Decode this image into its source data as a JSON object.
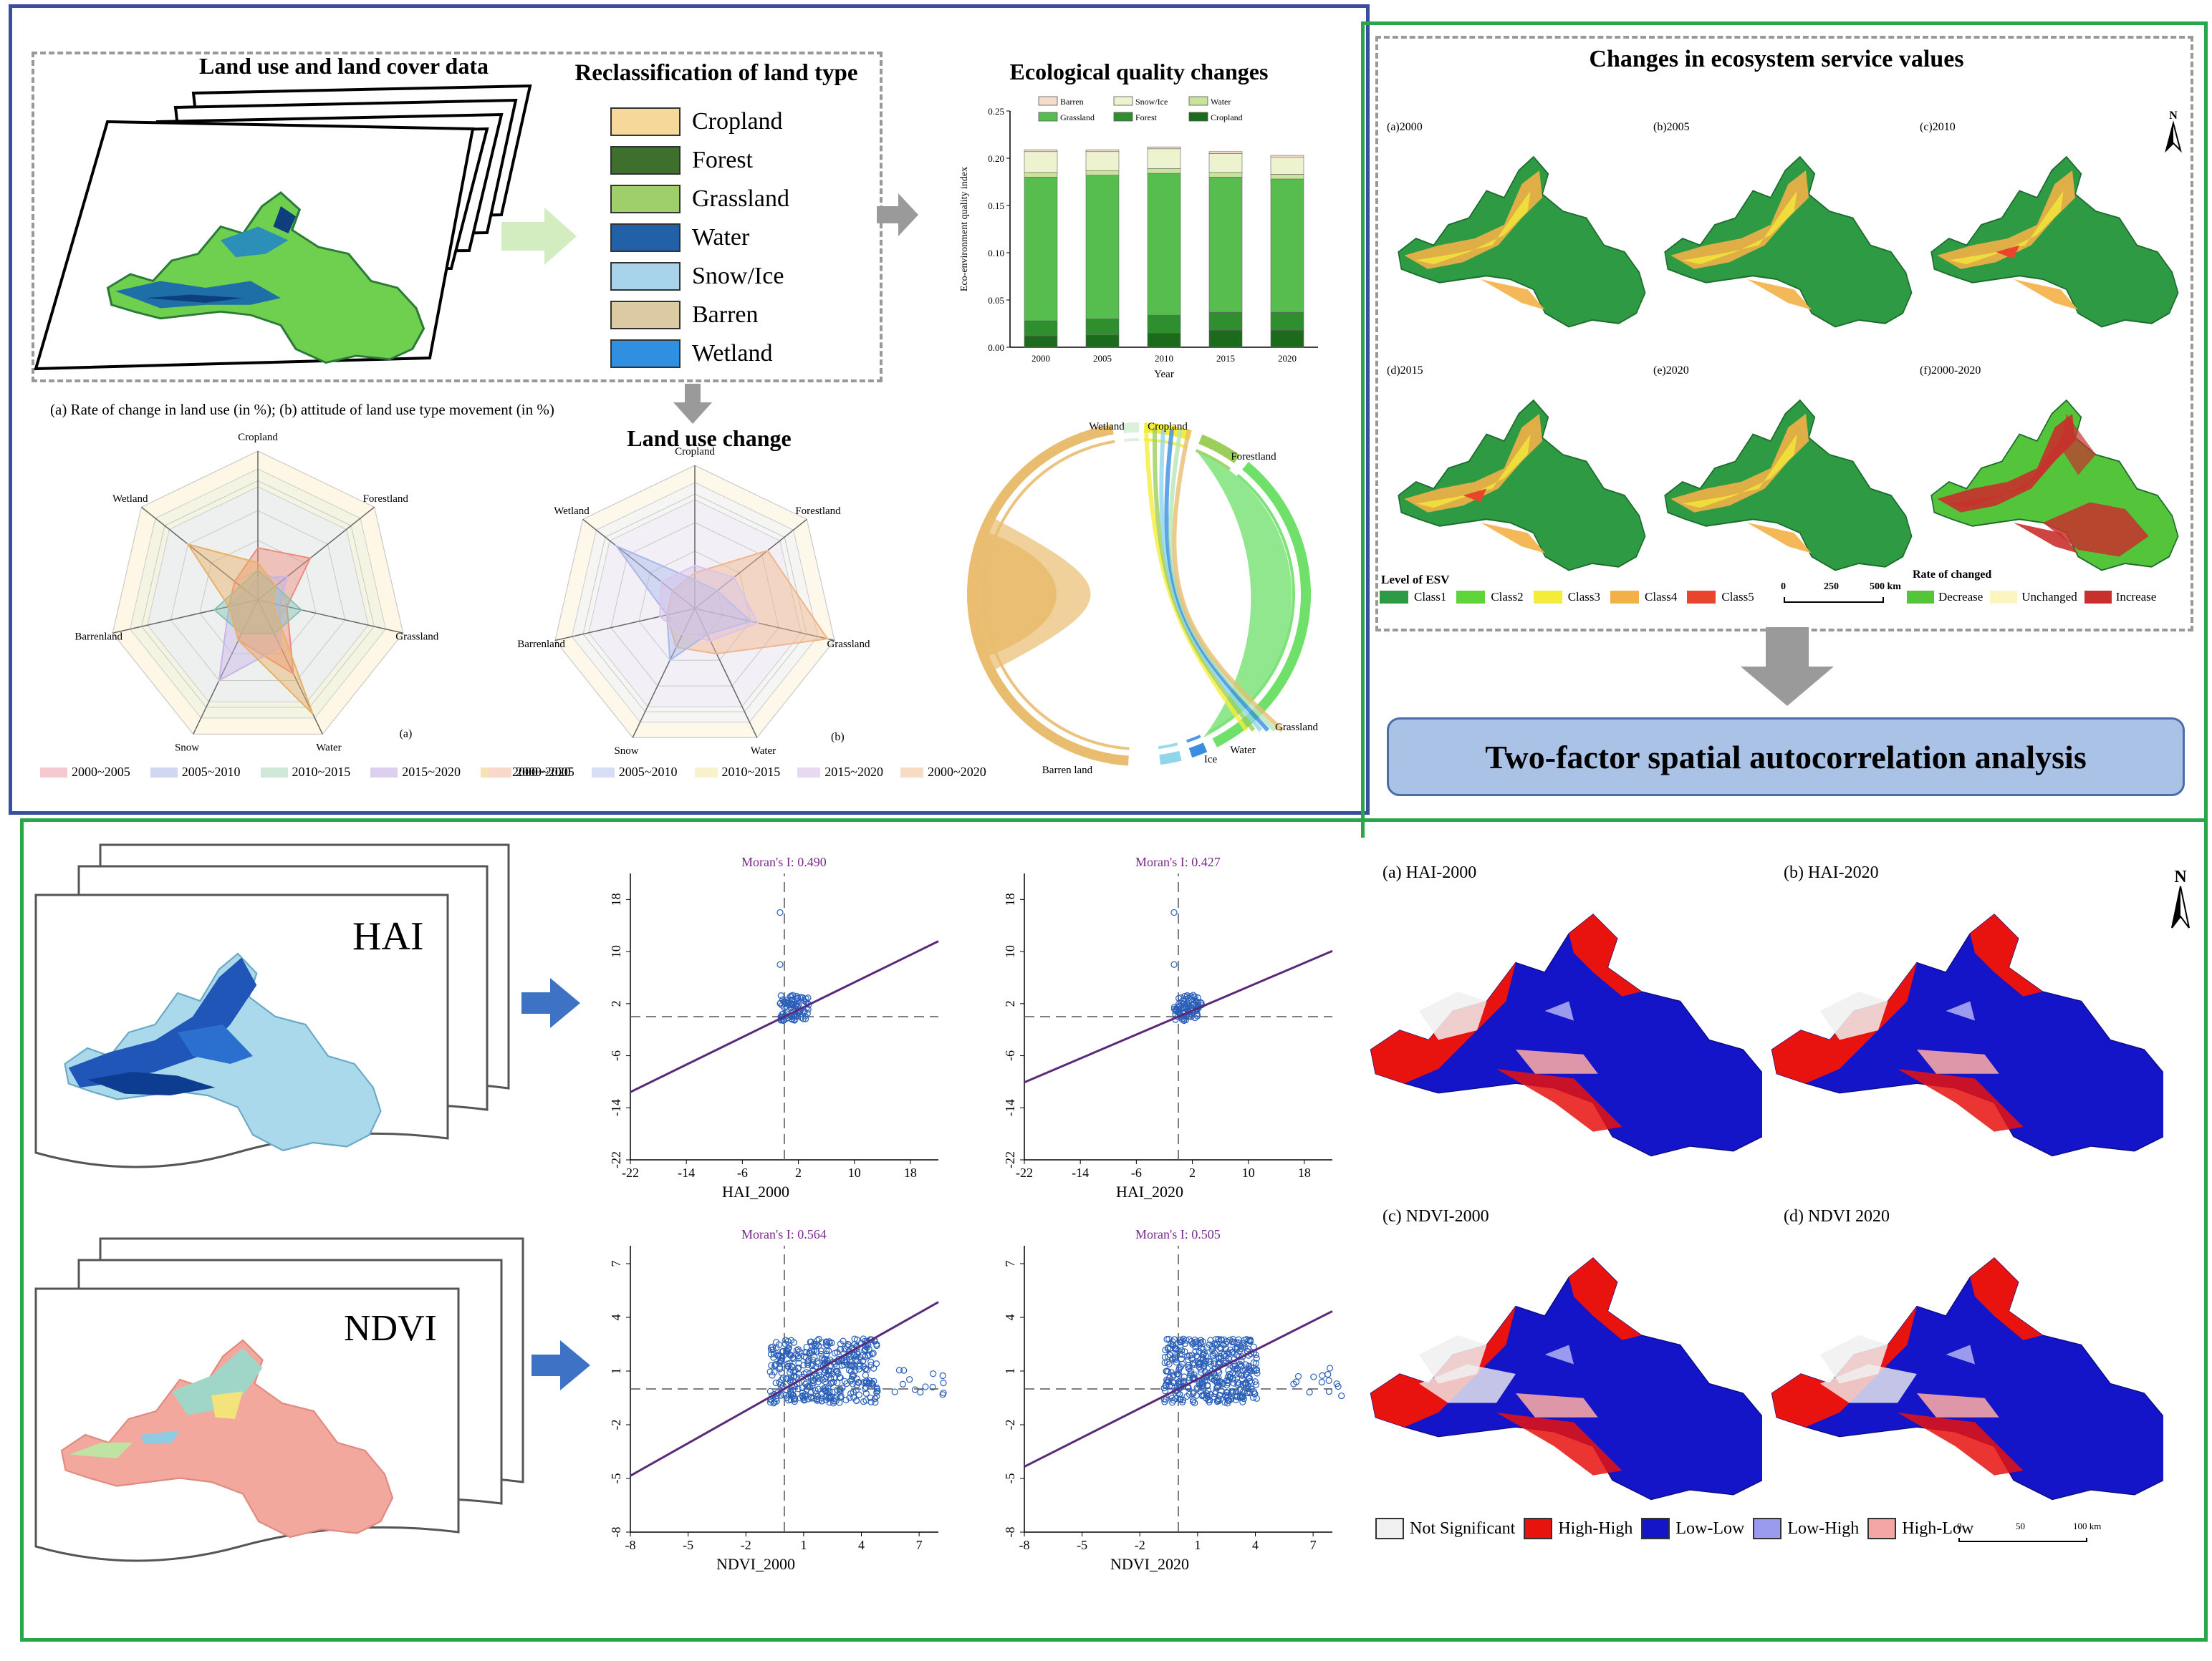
{
  "top_left": {
    "lulc_title": "Land use and land cover data",
    "reclass_title": "Reclassification of land type",
    "land_types": [
      {
        "label": "Cropland",
        "color": "#f6d89a"
      },
      {
        "label": "Forest",
        "color": "#3f6f2d"
      },
      {
        "label": "Grassland",
        "color": "#9fcf6a"
      },
      {
        "label": "Water",
        "color": "#2261a8"
      },
      {
        "label": "Snow/Ice",
        "color": "#a9d3ea"
      },
      {
        "label": "Barren",
        "color": "#dccba2"
      },
      {
        "label": "Wetland",
        "color": "#2f8fe0"
      }
    ],
    "radar_caption": "(a) Rate of change in land use (in %); (b) attitude of land use type movement (in %)",
    "luc_title": "Land use change",
    "radar_a": {
      "axes": [
        "Cropland",
        "Forestland",
        "Grassland",
        "Water",
        "Snow",
        "Barrenland",
        "Wetland"
      ],
      "tag": "(a)",
      "legend": [
        "2000~2005",
        "2005~2010",
        "2010~2015",
        "2015~2020",
        "2000~2020"
      ]
    },
    "radar_b": {
      "axes": [
        "Cropland",
        "Forestland",
        "Grassland",
        "Water",
        "Snow",
        "Barrenland",
        "Wetland"
      ],
      "tag": "(b)",
      "legend": [
        "2000~2005",
        "2005~2010",
        "2010~2015",
        "2015~2020",
        "2000~2020"
      ]
    }
  },
  "eco": {
    "title": "Ecological quality changes",
    "legend": [
      "Barren",
      "Snow/Ice",
      "Water",
      "Grassland",
      "Forest",
      "Cropland"
    ],
    "chart_data": {
      "type": "bar",
      "categories": [
        "2000",
        "2005",
        "2010",
        "2015",
        "2020"
      ],
      "xlabel": "Year",
      "ylabel": "Eco-environment quality index",
      "ylim": [
        0,
        0.25
      ],
      "yticks": [
        "0.00",
        "0.05",
        "0.10",
        "0.15",
        "0.20",
        "0.25"
      ],
      "series": [
        {
          "name": "Cropland",
          "color": "#1c6b1c",
          "values": [
            0.012,
            0.013,
            0.015,
            0.018,
            0.018
          ]
        },
        {
          "name": "Forest",
          "color": "#2f8f2f",
          "values": [
            0.016,
            0.017,
            0.019,
            0.019,
            0.019
          ]
        },
        {
          "name": "Grassland",
          "color": "#57bd4f",
          "values": [
            0.152,
            0.152,
            0.15,
            0.143,
            0.141
          ]
        },
        {
          "name": "Water",
          "color": "#c7e39c",
          "values": [
            0.005,
            0.005,
            0.005,
            0.005,
            0.005
          ]
        },
        {
          "name": "Snow/Ice",
          "color": "#eef3cf",
          "values": [
            0.022,
            0.02,
            0.021,
            0.02,
            0.018
          ]
        },
        {
          "name": "Barren",
          "color": "#f5dccb",
          "values": [
            0.002,
            0.002,
            0.002,
            0.002,
            0.002
          ]
        }
      ]
    },
    "chord_labels": [
      "Wetland",
      "Cropland",
      "Forestland",
      "Grassland",
      "Water",
      "Ice",
      "Barren land"
    ]
  },
  "esv": {
    "title": "Changes in ecosystem service values",
    "maps": [
      "(a)2000",
      "(b)2005",
      "(c)2010",
      "(d)2015",
      "(e)2020",
      "(f)2000-2020"
    ],
    "north": "N",
    "level_title": "Level of ESV",
    "levels": [
      {
        "label": "Class1",
        "color": "#2e9b44"
      },
      {
        "label": "Class2",
        "color": "#5ed33c"
      },
      {
        "label": "Class3",
        "color": "#f4ec3a"
      },
      {
        "label": "Class4",
        "color": "#f3b047"
      },
      {
        "label": "Class5",
        "color": "#e8452d"
      }
    ],
    "scale_labels": [
      "0",
      "250",
      "500 km"
    ],
    "rate_title": "Rate of changed",
    "rates": [
      {
        "label": "Decrease",
        "color": "#54c43a"
      },
      {
        "label": "Unchanged",
        "color": "#fbf6c0"
      },
      {
        "label": "Increase",
        "color": "#c8302c"
      }
    ]
  },
  "two_factor": {
    "label": "Two-factor spatial autocorrelation analysis"
  },
  "bottom": {
    "hai_label": "HAI",
    "ndvi_label": "NDVI",
    "scatter": [
      {
        "moran": "Moran's I: 0.490",
        "xlabel": "HAI_2000",
        "xticks": [
          "-22",
          "-14",
          "-6",
          "2",
          "10",
          "18"
        ],
        "yticks": [
          "18",
          "10",
          "2",
          "-6",
          "-14",
          "-22"
        ]
      },
      {
        "moran": "Moran's I: 0.427",
        "xlabel": "HAI_2020",
        "xticks": [
          "-22",
          "-14",
          "-6",
          "2",
          "10",
          "18"
        ],
        "yticks": [
          "18",
          "10",
          "2",
          "-6",
          "-14",
          "-22"
        ]
      },
      {
        "moran": "Moran's I: 0.564",
        "xlabel": "NDVI_2000",
        "xticks": [
          "-8",
          "-5",
          "-2",
          "1",
          "4",
          "7"
        ],
        "yticks": [
          "7",
          "4",
          "1",
          "-2",
          "-5",
          "-8"
        ]
      },
      {
        "moran": "Moran's I: 0.505",
        "xlabel": "NDVI_2020",
        "xticks": [
          "-8",
          "-5",
          "-2",
          "1",
          "4",
          "7"
        ],
        "yticks": [
          "7",
          "4",
          "1",
          "-2",
          "-5",
          "-8"
        ]
      }
    ],
    "lisa_maps": [
      "(a)  HAI-2000",
      "(b)  HAI-2020",
      "(c)  NDVI-2000",
      "(d)  NDVI  2020"
    ],
    "north": "N",
    "lisa_legend": [
      {
        "label": "Not Significant",
        "color": "#f0f0f0"
      },
      {
        "label": "High-High",
        "color": "#e8120e"
      },
      {
        "label": "Low-Low",
        "color": "#1414c8"
      },
      {
        "label": "Low-High",
        "color": "#9a9aee"
      },
      {
        "label": "High-Low",
        "color": "#f4a5a5"
      }
    ],
    "lisa_scale": [
      "0",
      "50",
      "100 km"
    ]
  }
}
